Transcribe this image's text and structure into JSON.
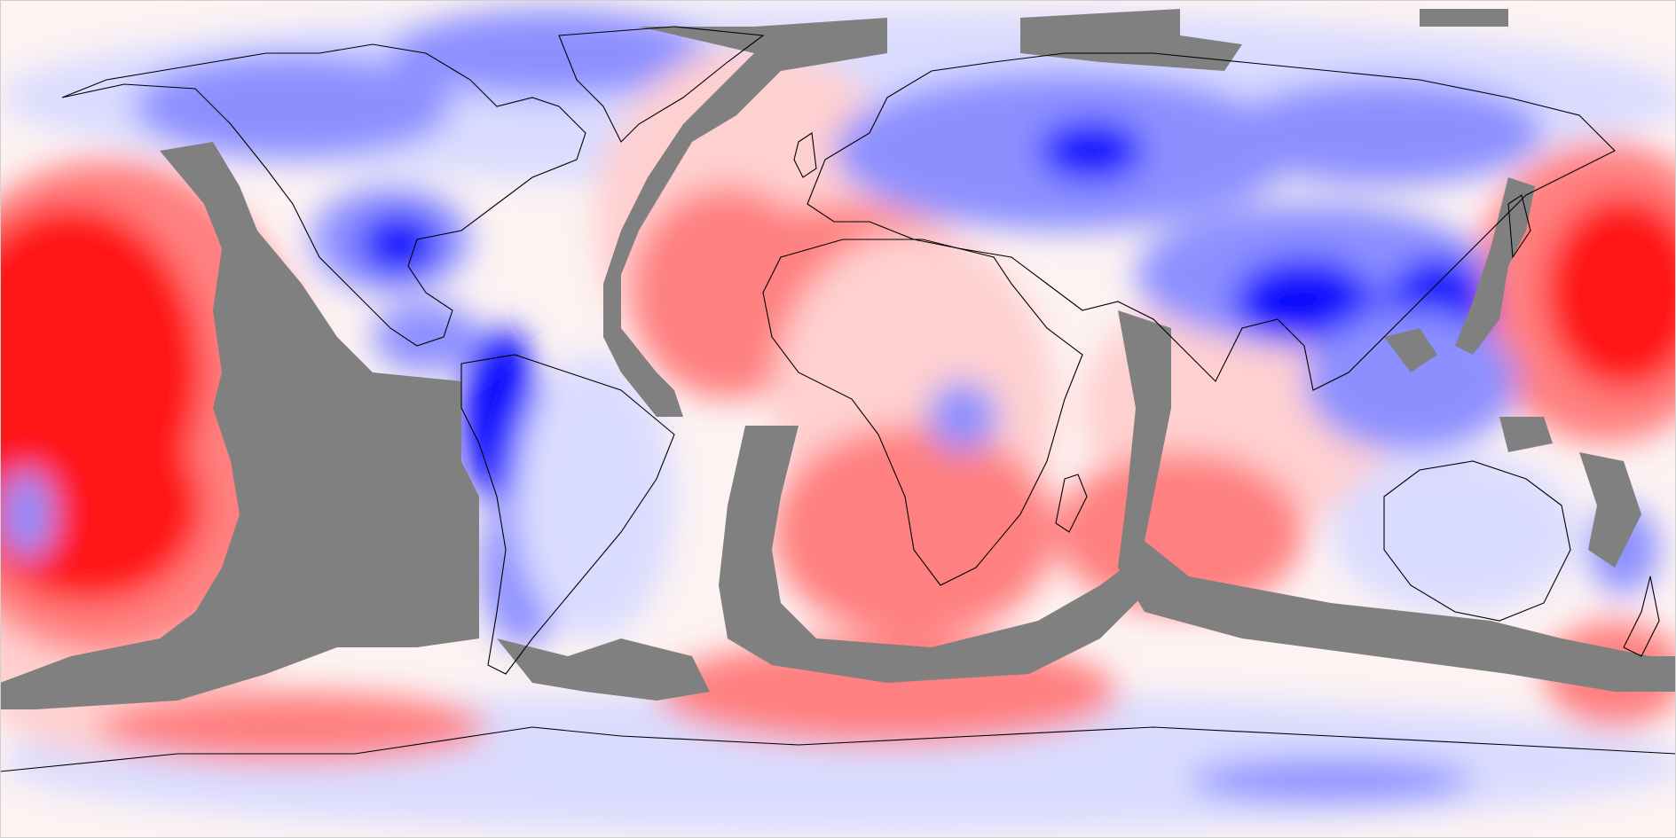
{
  "map": {
    "projection": "equirectangular",
    "longitude_range": [
      -180,
      180
    ],
    "latitude_range": [
      -90,
      90
    ],
    "colors": {
      "background": "#fdf3f3",
      "mask": "#808080",
      "coastline": "#000000",
      "strong_positive": "#ff1414",
      "moderate_positive": "#ff8080",
      "weak_positive": "#ffd0d0",
      "neutral": "#ffffff",
      "weak_negative": "#dadcff",
      "moderate_negative": "#8c90ff",
      "strong_negative": "#0a0aff"
    },
    "field_description_tokens": [
      "red-anomaly",
      "blue-anomaly",
      "grey-missing-data"
    ]
  }
}
